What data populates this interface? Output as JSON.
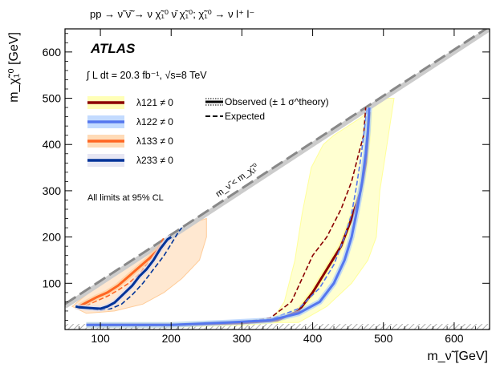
{
  "chart_data": {
    "type": "line",
    "title": "pp → ν̃ ν̃̄ → ν χ̃₁⁰ ν̄ χ̃₁⁰;   χ̃₁⁰ → ν l⁺ l⁻",
    "experiment_label": "ATLAS",
    "lumi_label": "∫ L dt = 20.3 fb⁻¹, √s=8 TeV",
    "xlabel": "m_ν̃ [GeV]",
    "ylabel": "m_χ̃₁⁰ [GeV]",
    "xlim": [
      50,
      650
    ],
    "ylim": [
      0,
      650
    ],
    "x_ticks": [
      100,
      200,
      300,
      400,
      500,
      600
    ],
    "y_ticks": [
      0,
      100,
      200,
      300,
      400,
      500,
      600
    ],
    "x_tick_labels": [
      "100",
      "200",
      "300",
      "400",
      "500",
      "600"
    ],
    "y_tick_labels": [
      "100",
      "200",
      "300",
      "400",
      "500",
      "600"
    ],
    "legend_placement": "top-left",
    "diagonal_label": "m_ν̃ < m_χ̃₁⁰",
    "cl_note": "All limits at 95% CL",
    "legend_style": {
      "observed": "Observed (± 1 σ^theory)",
      "expected": "Expected"
    },
    "series": [
      {
        "name": "λ121 ≠ 0",
        "color": "#8b0000",
        "band_color": "#ffff99",
        "observed": [
          [
            80,
            10
          ],
          [
            200,
            10
          ],
          [
            300,
            14
          ],
          [
            350,
            20
          ],
          [
            380,
            40
          ],
          [
            400,
            80
          ],
          [
            420,
            130
          ],
          [
            440,
            180
          ],
          [
            455,
            240
          ],
          [
            468,
            300
          ],
          [
            475,
            360
          ],
          [
            478,
            420
          ],
          [
            480,
            470
          ]
        ],
        "expected": [
          [
            80,
            10
          ],
          [
            200,
            10
          ],
          [
            300,
            16
          ],
          [
            340,
            25
          ],
          [
            370,
            60
          ],
          [
            385,
            110
          ],
          [
            400,
            160
          ],
          [
            420,
            200
          ],
          [
            440,
            260
          ],
          [
            455,
            320
          ],
          [
            465,
            380
          ],
          [
            472,
            420
          ],
          [
            475,
            480
          ]
        ],
        "band": [
          [
            340,
            15
          ],
          [
            360,
            60
          ],
          [
            375,
            150
          ],
          [
            385,
            250
          ],
          [
            398,
            350
          ],
          [
            415,
            400
          ],
          [
            430,
            420
          ],
          [
            450,
            440
          ],
          [
            470,
            460
          ],
          [
            495,
            500
          ],
          [
            515,
            500
          ],
          [
            505,
            400
          ],
          [
            495,
            300
          ],
          [
            490,
            200
          ],
          [
            478,
            150
          ],
          [
            455,
            100
          ],
          [
            420,
            50
          ],
          [
            380,
            15
          ]
        ]
      },
      {
        "name": "λ122 ≠ 0",
        "color": "#5577ee",
        "band_color": "#aaccff",
        "observed": [
          [
            80,
            10
          ],
          [
            200,
            10
          ],
          [
            280,
            15
          ],
          [
            340,
            20
          ],
          [
            380,
            35
          ],
          [
            410,
            60
          ],
          [
            430,
            100
          ],
          [
            445,
            150
          ],
          [
            455,
            200
          ],
          [
            463,
            260
          ],
          [
            470,
            320
          ],
          [
            475,
            380
          ],
          [
            478,
            430
          ],
          [
            480,
            480
          ]
        ],
        "expected": [
          [
            80,
            10
          ],
          [
            200,
            10
          ],
          [
            280,
            16
          ],
          [
            340,
            22
          ],
          [
            380,
            45
          ],
          [
            410,
            90
          ],
          [
            430,
            140
          ],
          [
            445,
            200
          ],
          [
            455,
            250
          ],
          [
            462,
            310
          ],
          [
            468,
            370
          ],
          [
            473,
            430
          ],
          [
            477,
            480
          ]
        ]
      },
      {
        "name": "λ133 ≠ 0",
        "color": "#ff6622",
        "band_color": "#ffcc99",
        "observed": [
          [
            70,
            50
          ],
          [
            80,
            58
          ],
          [
            95,
            70
          ],
          [
            110,
            80
          ],
          [
            125,
            95
          ],
          [
            140,
            115
          ],
          [
            155,
            135
          ],
          [
            170,
            155
          ],
          [
            180,
            170
          ],
          [
            190,
            185
          ]
        ],
        "expected": [
          [
            70,
            45
          ],
          [
            80,
            52
          ],
          [
            95,
            62
          ],
          [
            110,
            72
          ],
          [
            125,
            85
          ],
          [
            140,
            100
          ],
          [
            155,
            120
          ],
          [
            165,
            140
          ],
          [
            175,
            160
          ],
          [
            185,
            185
          ],
          [
            190,
            200
          ]
        ],
        "band": [
          [
            60,
            50
          ],
          [
            80,
            75
          ],
          [
            100,
            100
          ],
          [
            140,
            150
          ],
          [
            180,
            190
          ],
          [
            210,
            220
          ],
          [
            240,
            235
          ],
          [
            250,
            240
          ],
          [
            250,
            200
          ],
          [
            240,
            150
          ],
          [
            215,
            110
          ],
          [
            190,
            80
          ],
          [
            160,
            55
          ],
          [
            120,
            40
          ],
          [
            80,
            35
          ]
        ]
      },
      {
        "name": "λ233 ≠ 0",
        "color": "#003399",
        "band_color": "#ddddf0",
        "observed": [
          [
            65,
            50
          ],
          [
            70,
            48
          ],
          [
            80,
            47
          ],
          [
            90,
            46
          ],
          [
            100,
            45
          ],
          [
            110,
            50
          ],
          [
            120,
            58
          ],
          [
            135,
            80
          ],
          [
            145,
            95
          ],
          [
            155,
            115
          ],
          [
            165,
            130
          ],
          [
            175,
            150
          ],
          [
            185,
            175
          ],
          [
            195,
            195
          ],
          [
            200,
            200
          ]
        ],
        "expected": [
          [
            70,
            50
          ],
          [
            85,
            45
          ],
          [
            100,
            42
          ],
          [
            115,
            45
          ],
          [
            130,
            55
          ],
          [
            145,
            75
          ],
          [
            160,
            100
          ],
          [
            175,
            130
          ],
          [
            190,
            160
          ],
          [
            200,
            185
          ],
          [
            210,
            210
          ],
          [
            215,
            220
          ]
        ]
      }
    ]
  }
}
